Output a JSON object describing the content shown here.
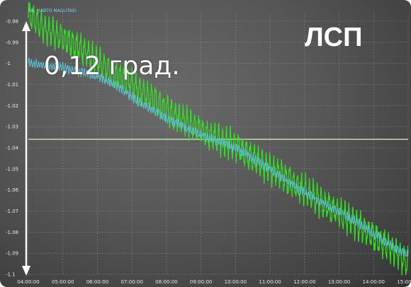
{
  "overlay": {
    "range_label": "0,12 град.",
    "corner_label": "ЛСП"
  },
  "colors": {
    "background": "#575757",
    "grid": "#9a9a9a",
    "series_green": "#2ee81e",
    "series_cyan": "#5cc6de",
    "reference_line": "#c8ecb0",
    "arrow": "#ffffff"
  },
  "chart_data": {
    "type": "line",
    "title": "",
    "xlabel": "",
    "ylabel": "",
    "legend_text": "EK. *(ABTO MAGLITAS)",
    "legend_position": "top-left",
    "grid": true,
    "xlim": [
      "04:00:00",
      "15:00:00"
    ],
    "ylim": [
      -1.1,
      -0.98
    ],
    "x_ticks": [
      "04:00:00",
      "05:00:00",
      "06:00:00",
      "07:00:00",
      "08:00:00",
      "09:00:00",
      "10:00:00",
      "11:00:00",
      "12:00:00",
      "13:00:00",
      "14:00:00",
      "15:00:00"
    ],
    "y_ticks": [
      "-0.98",
      "-0.99",
      "-1",
      "-1.01",
      "-1.02",
      "-1.03",
      "-1.04",
      "-1.05",
      "-1.06",
      "-1.07",
      "-1.08",
      "-1.09",
      "-1.1"
    ],
    "series": [
      {
        "color": "#2ee81e",
        "x": [
          "04:00:00",
          "04:30:00",
          "05:00:00",
          "05:30:00",
          "06:00:00",
          "06:30:00",
          "07:00:00",
          "07:30:00",
          "08:00:00",
          "08:30:00",
          "09:00:00",
          "09:30:00",
          "10:00:00",
          "10:30:00",
          "11:00:00",
          "11:30:00",
          "12:00:00",
          "12:30:00",
          "13:00:00",
          "13:30:00",
          "14:00:00",
          "14:30:00",
          "15:00:00"
        ],
        "values": [
          -0.977,
          -0.984,
          -0.988,
          -0.993,
          -0.999,
          -1.005,
          -1.01,
          -1.016,
          -1.022,
          -1.027,
          -1.032,
          -1.036,
          -1.039,
          -1.045,
          -1.05,
          -1.055,
          -1.06,
          -1.066,
          -1.071,
          -1.076,
          -1.082,
          -1.088,
          -1.095
        ]
      },
      {
        "color": "#5cc6de",
        "x": [
          "04:00:00",
          "04:30:00",
          "05:00:00",
          "05:30:00",
          "06:00:00",
          "06:30:00",
          "07:00:00",
          "07:30:00",
          "08:00:00",
          "08:30:00",
          "09:00:00",
          "09:30:00",
          "10:00:00",
          "10:30:00",
          "11:00:00",
          "11:30:00",
          "12:00:00",
          "12:30:00",
          "13:00:00",
          "13:30:00",
          "14:00:00",
          "14:30:00",
          "15:00:00"
        ],
        "values": [
          -1.0,
          -1.001,
          -1.002,
          -1.004,
          -1.006,
          -1.01,
          -1.016,
          -1.021,
          -1.026,
          -1.03,
          -1.034,
          -1.037,
          -1.04,
          -1.045,
          -1.05,
          -1.056,
          -1.061,
          -1.066,
          -1.07,
          -1.075,
          -1.081,
          -1.086,
          -1.091
        ]
      },
      {
        "color": "#c8ecb0",
        "x": [
          "04:00:00",
          "15:00:00"
        ],
        "values": [
          -1.036,
          -1.036
        ]
      }
    ]
  }
}
